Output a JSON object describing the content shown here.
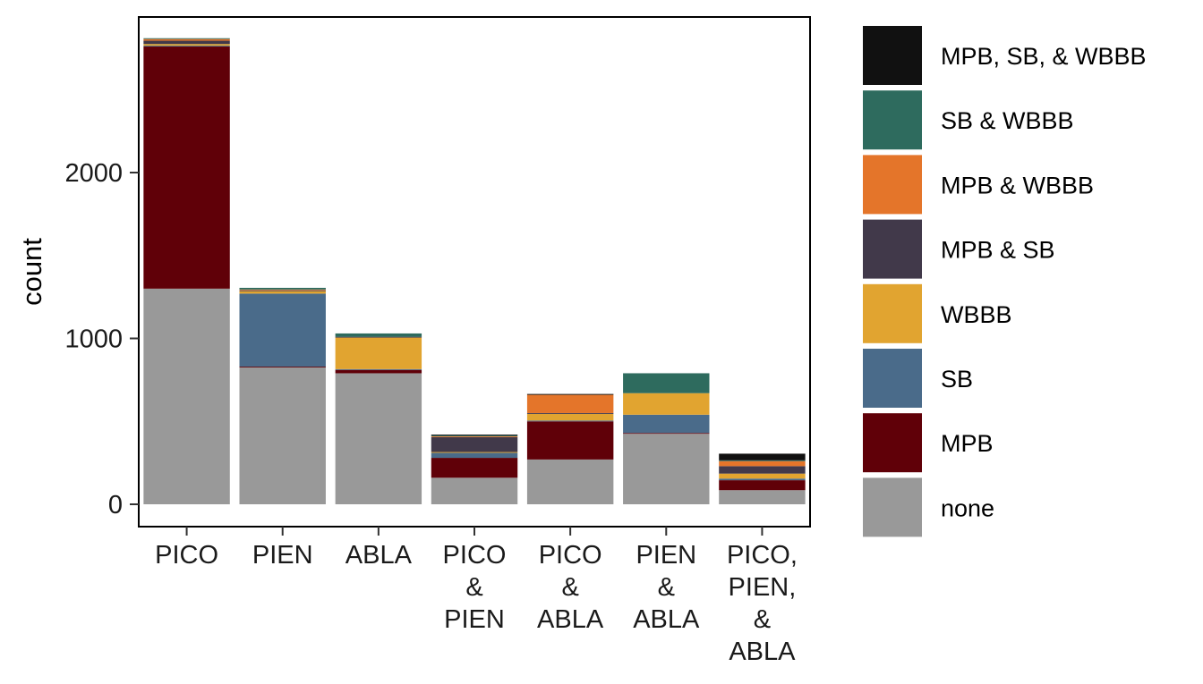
{
  "chart_data": {
    "type": "bar",
    "stacked": true,
    "ylabel": "count",
    "ylim": [
      0,
      2820
    ],
    "y_ticks": [
      0,
      1000,
      2000
    ],
    "categories": [
      [
        "PICO"
      ],
      [
        "PIEN"
      ],
      [
        "ABLA"
      ],
      [
        "PICO",
        "&",
        "PIEN"
      ],
      [
        "PICO",
        "&",
        "ABLA"
      ],
      [
        "PIEN",
        "&",
        "ABLA"
      ],
      [
        "PICO,",
        "PIEN,",
        "&",
        "ABLA"
      ]
    ],
    "series": [
      {
        "name": "none",
        "color": "#999999",
        "values": [
          1300,
          825,
          790,
          160,
          270,
          425,
          85
        ]
      },
      {
        "name": "MPB",
        "color": "#600008",
        "values": [
          1460,
          5,
          20,
          120,
          230,
          5,
          60
        ]
      },
      {
        "name": "SB",
        "color": "#4A6B8A",
        "values": [
          5,
          440,
          5,
          30,
          5,
          110,
          10
        ]
      },
      {
        "name": "WBBB",
        "color": "#E1A430",
        "values": [
          10,
          15,
          190,
          5,
          40,
          130,
          30
        ]
      },
      {
        "name": "MPB & SB",
        "color": "#41394A",
        "values": [
          20,
          5,
          5,
          90,
          5,
          0,
          45
        ]
      },
      {
        "name": "MPB & WBBB",
        "color": "#E4752A",
        "values": [
          10,
          5,
          0,
          5,
          110,
          0,
          30
        ]
      },
      {
        "name": "SB & WBBB",
        "color": "#2E6B5E",
        "values": [
          5,
          10,
          20,
          5,
          0,
          120,
          5
        ]
      },
      {
        "name": "MPB, SB, & WBBB",
        "color": "#111111",
        "values": [
          0,
          0,
          0,
          5,
          5,
          0,
          40
        ]
      }
    ],
    "legend_order": [
      "MPB, SB, & WBBB",
      "SB & WBBB",
      "MPB & WBBB",
      "MPB & SB",
      "WBBB",
      "SB",
      "MPB",
      "none"
    ],
    "legend_position": "right",
    "grid": false
  }
}
